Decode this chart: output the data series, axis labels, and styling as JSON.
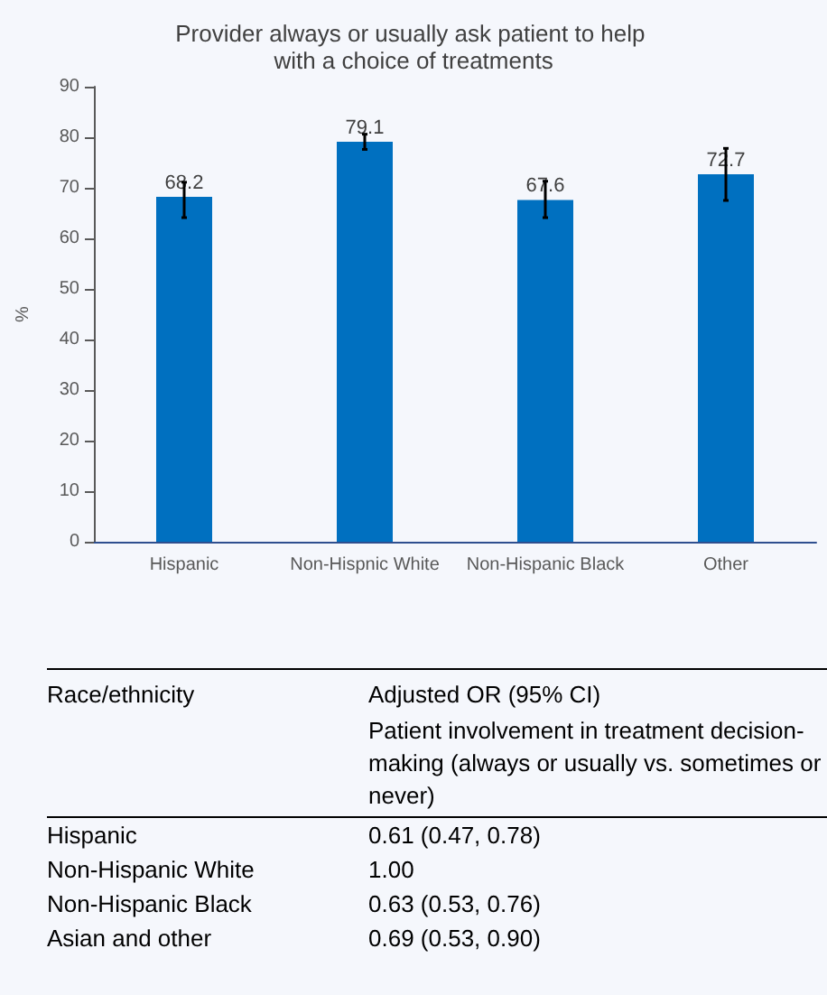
{
  "chart_data": [
    {
      "type": "bar",
      "title": "Provider always or usually ask patient to help with a choice of treatments",
      "ylabel": "%",
      "categories": [
        "Hispanic",
        "Non-Hispnic White",
        "Non-Hispanic Black",
        "Other"
      ],
      "values": [
        68.2,
        79.1,
        67.6,
        72.7
      ],
      "color": "#0070c0",
      "errors": [
        [
          64.1,
          71.1
        ],
        [
          77.6,
          80.6
        ],
        [
          64.1,
          71.3
        ],
        [
          67.5,
          77.8
        ]
      ],
      "data_labels": true,
      "ylim": [
        0,
        90
      ],
      "yticks": [
        0,
        10,
        20,
        30,
        40,
        50,
        60,
        70,
        80,
        90
      ],
      "grid": false
    },
    {
      "type": "other",
      "annotations": [
        "Race/ethnicity",
        "Adjusted OR (95% CI)",
        "Patient involvement in treatment decision-making (always or usually vs. sometimes or never)",
        "Hispanic",
        "0.61 (0.47, 0.78)",
        "Non-Hispanic White",
        "1.00",
        "Non-Hispanic Black",
        "0.63 (0.53, 0.76)",
        "Asian and other",
        "0.69 (0.53, 0.90)"
      ]
    }
  ]
}
